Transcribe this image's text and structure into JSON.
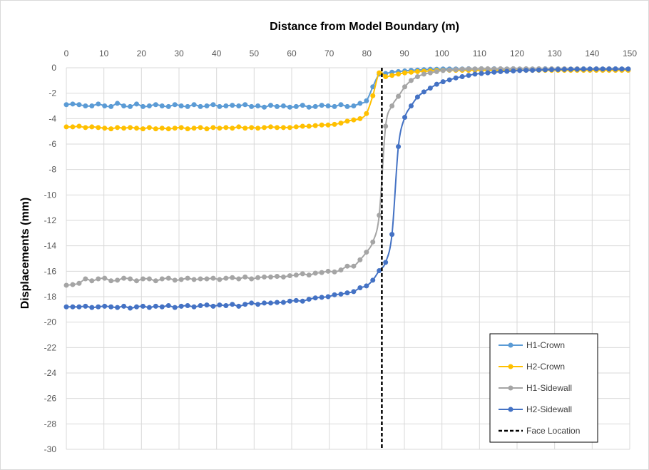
{
  "chart_data": {
    "type": "line",
    "title": "Distance from Model Boundary (m)",
    "xlabel": "",
    "ylabel": "Displacements (mm)",
    "xlim": [
      0,
      150
    ],
    "ylim": [
      -30,
      0
    ],
    "x_ticks": [
      0,
      10,
      20,
      30,
      40,
      50,
      60,
      70,
      80,
      90,
      100,
      110,
      120,
      130,
      140,
      150
    ],
    "y_ticks": [
      0,
      -2,
      -4,
      -6,
      -8,
      -10,
      -12,
      -14,
      -16,
      -18,
      -20,
      -22,
      -24,
      -26,
      -28,
      -30
    ],
    "x_axis_position": "top",
    "grid": true,
    "legend": {
      "position": "bottom-right"
    },
    "x": [
      0,
      1.7,
      3.4,
      5.1,
      6.8,
      8.5,
      10.2,
      11.9,
      13.6,
      15.3,
      17,
      18.7,
      20.4,
      22.1,
      23.8,
      25.5,
      27.2,
      28.9,
      30.6,
      32.3,
      34,
      35.7,
      37.4,
      39.1,
      40.8,
      42.5,
      44.2,
      45.9,
      47.6,
      49.3,
      51,
      52.7,
      54.4,
      56.1,
      57.8,
      59.5,
      61.2,
      62.9,
      64.6,
      66.3,
      68,
      69.7,
      71.4,
      73.1,
      74.8,
      76.5,
      78.2,
      79.9,
      81.6,
      83.3,
      85,
      86.7,
      88.4,
      90.1,
      91.8,
      93.5,
      95.2,
      96.9,
      98.6,
      100.3,
      102,
      103.7,
      105.4,
      107.1,
      108.8,
      110.5,
      112.2,
      113.9,
      115.6,
      117.3,
      119,
      120.7,
      122.4,
      124.1,
      125.8,
      127.5,
      129.2,
      130.9,
      132.6,
      134.3,
      136,
      137.7,
      139.4,
      141.1,
      142.8,
      144.5,
      146.2,
      147.9,
      149.6
    ],
    "series": [
      {
        "name": "H1-Crown",
        "color": "#5B9BD5",
        "marker": true,
        "values": [
          -2.9,
          -2.85,
          -2.9,
          -3.0,
          -3.0,
          -2.85,
          -3.0,
          -3.05,
          -2.8,
          -3.0,
          -3.05,
          -2.85,
          -3.05,
          -3.0,
          -2.9,
          -3.0,
          -3.05,
          -2.9,
          -3.0,
          -3.05,
          -2.9,
          -3.05,
          -3.0,
          -2.9,
          -3.05,
          -3.0,
          -2.95,
          -3.0,
          -2.9,
          -3.05,
          -3.0,
          -3.1,
          -2.95,
          -3.05,
          -3.0,
          -3.1,
          -3.05,
          -2.95,
          -3.1,
          -3.05,
          -2.95,
          -3.0,
          -3.05,
          -2.9,
          -3.05,
          -3.0,
          -2.8,
          -2.6,
          -1.5,
          -0.5,
          -0.45,
          -0.35,
          -0.3,
          -0.25,
          -0.2,
          -0.18,
          -0.15,
          -0.12,
          -0.12,
          -0.1,
          -0.1,
          -0.1,
          -0.1,
          -0.08,
          -0.1,
          -0.08,
          -0.1,
          -0.08,
          -0.1,
          -0.1,
          -0.08,
          -0.1,
          -0.1,
          -0.1,
          -0.1,
          -0.08,
          -0.1,
          -0.08,
          -0.1,
          -0.1,
          -0.1,
          -0.08,
          -0.1,
          -0.1,
          -0.1,
          -0.1,
          -0.08,
          -0.1,
          -0.1
        ]
      },
      {
        "name": "H2-Crown",
        "color": "#FFC000",
        "marker": true,
        "values": [
          -4.65,
          -4.65,
          -4.6,
          -4.7,
          -4.65,
          -4.7,
          -4.75,
          -4.8,
          -4.7,
          -4.75,
          -4.7,
          -4.75,
          -4.8,
          -4.7,
          -4.8,
          -4.75,
          -4.8,
          -4.75,
          -4.7,
          -4.8,
          -4.75,
          -4.7,
          -4.8,
          -4.7,
          -4.75,
          -4.7,
          -4.75,
          -4.65,
          -4.75,
          -4.7,
          -4.75,
          -4.7,
          -4.65,
          -4.7,
          -4.7,
          -4.7,
          -4.65,
          -4.6,
          -4.6,
          -4.55,
          -4.5,
          -4.5,
          -4.45,
          -4.35,
          -4.2,
          -4.1,
          -4.0,
          -3.6,
          -2.2,
          -0.4,
          -0.7,
          -0.6,
          -0.5,
          -0.4,
          -0.35,
          -0.3,
          -0.28,
          -0.25,
          -0.22,
          -0.2,
          -0.2,
          -0.2,
          -0.2,
          -0.2,
          -0.2,
          -0.2,
          -0.2,
          -0.2,
          -0.2,
          -0.2,
          -0.2,
          -0.2,
          -0.2,
          -0.2,
          -0.2,
          -0.2,
          -0.2,
          -0.2,
          -0.2,
          -0.2,
          -0.2,
          -0.2,
          -0.2,
          -0.2,
          -0.2,
          -0.2,
          -0.2,
          -0.2,
          -0.2
        ]
      },
      {
        "name": "H1-Sidewall",
        "color": "#A5A5A5",
        "marker": true,
        "values": [
          -17.1,
          -17.05,
          -16.95,
          -16.6,
          -16.75,
          -16.6,
          -16.55,
          -16.75,
          -16.7,
          -16.55,
          -16.6,
          -16.75,
          -16.6,
          -16.6,
          -16.75,
          -16.6,
          -16.55,
          -16.7,
          -16.65,
          -16.55,
          -16.65,
          -16.6,
          -16.6,
          -16.55,
          -16.65,
          -16.55,
          -16.5,
          -16.6,
          -16.45,
          -16.6,
          -16.5,
          -16.45,
          -16.45,
          -16.4,
          -16.45,
          -16.35,
          -16.3,
          -16.2,
          -16.3,
          -16.15,
          -16.1,
          -16.0,
          -16.05,
          -15.9,
          -15.6,
          -15.6,
          -15.1,
          -14.5,
          -13.7,
          -11.6,
          -4.6,
          -3.0,
          -2.25,
          -1.5,
          -1.0,
          -0.7,
          -0.5,
          -0.4,
          -0.3,
          -0.22,
          -0.18,
          -0.15,
          -0.12,
          -0.1,
          -0.1,
          -0.08,
          -0.08,
          -0.1,
          -0.08,
          -0.1,
          -0.08,
          -0.1,
          -0.08,
          -0.1,
          -0.08,
          -0.1,
          -0.08,
          -0.1,
          -0.08,
          -0.1,
          -0.08,
          -0.1,
          -0.1,
          -0.08,
          -0.1,
          -0.08,
          -0.1,
          -0.1,
          -0.1
        ]
      },
      {
        "name": "H2-Sidewall",
        "color": "#4472C4",
        "marker": true,
        "values": [
          -18.8,
          -18.8,
          -18.8,
          -18.75,
          -18.85,
          -18.8,
          -18.75,
          -18.8,
          -18.85,
          -18.75,
          -18.9,
          -18.8,
          -18.75,
          -18.85,
          -18.75,
          -18.8,
          -18.7,
          -18.85,
          -18.75,
          -18.7,
          -18.8,
          -18.7,
          -18.65,
          -18.75,
          -18.65,
          -18.7,
          -18.6,
          -18.75,
          -18.6,
          -18.5,
          -18.6,
          -18.5,
          -18.5,
          -18.45,
          -18.45,
          -18.35,
          -18.3,
          -18.35,
          -18.2,
          -18.1,
          -18.05,
          -18.0,
          -17.85,
          -17.8,
          -17.7,
          -17.6,
          -17.3,
          -17.15,
          -16.7,
          -15.95,
          -15.3,
          -13.1,
          -6.2,
          -3.9,
          -3.0,
          -2.3,
          -1.9,
          -1.6,
          -1.3,
          -1.1,
          -0.95,
          -0.8,
          -0.7,
          -0.6,
          -0.5,
          -0.45,
          -0.4,
          -0.35,
          -0.3,
          -0.28,
          -0.25,
          -0.22,
          -0.2,
          -0.2,
          -0.18,
          -0.16,
          -0.15,
          -0.14,
          -0.13,
          -0.12,
          -0.12,
          -0.11,
          -0.1,
          -0.1,
          -0.1,
          -0.1,
          -0.1,
          -0.1,
          -0.1
        ]
      }
    ],
    "face_location": {
      "name": "Face Location",
      "x": 84,
      "color": "#000000"
    }
  }
}
